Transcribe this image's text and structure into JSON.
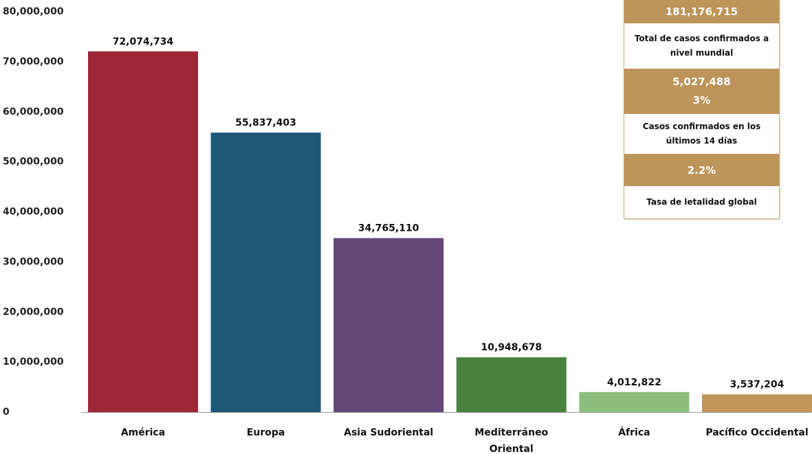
{
  "chart_data": {
    "type": "bar",
    "categories": [
      "América",
      "Europa",
      "Asia Sudoriental",
      "Mediterráneo Oriental",
      "África",
      "Pacífico Occidental"
    ],
    "category_lines": [
      [
        "América"
      ],
      [
        "Europa"
      ],
      [
        "Asia Sudoriental"
      ],
      [
        "Mediterráneo",
        "Oriental"
      ],
      [
        "África"
      ],
      [
        "Pacífico Occidental"
      ]
    ],
    "values": [
      72074734,
      55837403,
      34765110,
      10948678,
      4012822,
      3537204
    ],
    "data_labels": [
      "72,074,734",
      "55,837,403",
      "34,765,110",
      "10,948,678",
      "4,012,822",
      "3,537,204"
    ],
    "colors": [
      "#9e2737",
      "#1f5777",
      "#634878",
      "#4a8240",
      "#8cbd7c",
      "#c09659"
    ],
    "ylim": [
      0,
      80000000
    ],
    "y_ticks": [
      0,
      10000000,
      20000000,
      30000000,
      40000000,
      50000000,
      60000000,
      70000000,
      80000000
    ],
    "y_tick_labels": [
      "0",
      "10,000,000",
      "20,000,000",
      "30,000,000",
      "40,000,000",
      "50,000,000",
      "60,000,000",
      "70,000,000",
      "80,000,000"
    ],
    "grid": false,
    "title": "",
    "xlabel": "",
    "ylabel": ""
  },
  "summary": {
    "total_cases_value": "181,176,715",
    "total_cases_label": "Total de casos confirmados a nivel mundial",
    "recent_cases_value": "5,027,488",
    "recent_cases_percent": "3%",
    "recent_cases_label": "Casos confirmados en los últimos 14 días",
    "lethality_value": "2.2%",
    "lethality_label": "Tasa de letalidad global",
    "panel_value_color": "#bd9459"
  }
}
